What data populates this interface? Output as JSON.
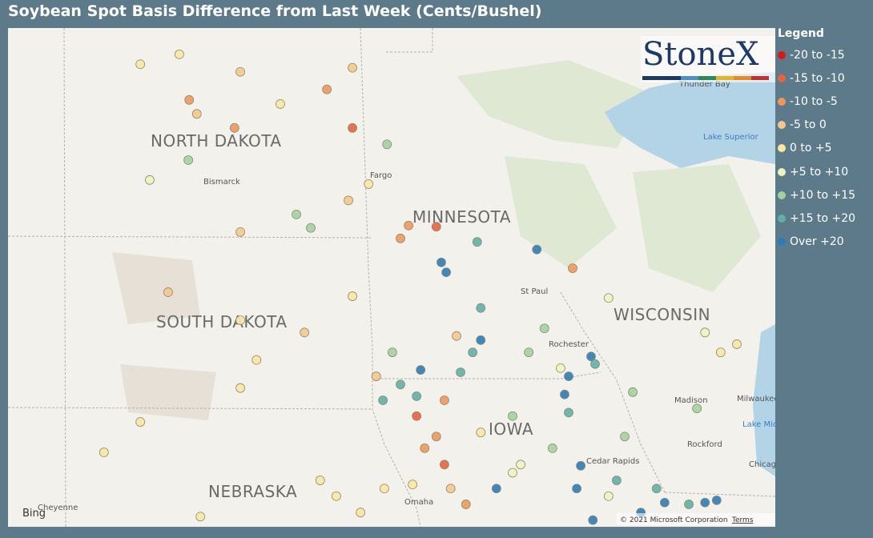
{
  "title": "Soybean Spot Basis Difference from Last Week (Cents/Bushel)",
  "logo": "StoneX",
  "legend": {
    "title": "Legend",
    "items": [
      {
        "label": "-20 to -15",
        "color": "#d7191c"
      },
      {
        "label": "-15 to -10",
        "color": "#e8643a"
      },
      {
        "label": "-10 to -5",
        "color": "#f0985a"
      },
      {
        "label": "-5 to 0",
        "color": "#f6c888"
      },
      {
        "label": "0 to +5",
        "color": "#fbe7a0"
      },
      {
        "label": "+5 to +10",
        "color": "#f1f3bd"
      },
      {
        "label": "+10 to +15",
        "color": "#a3d39c"
      },
      {
        "label": "+15 to +20",
        "color": "#5fb0a6"
      },
      {
        "label": "Over +20",
        "color": "#2c7bb6"
      }
    ]
  },
  "map_labels": {
    "states": [
      "NORTH DAKOTA",
      "SOUTH DAKOTA",
      "NEBRASKA",
      "MINNESOTA",
      "WISCONSIN",
      "IOWA"
    ],
    "cities": [
      "Bismarck",
      "Fargo",
      "St Paul",
      "Rochester",
      "Madison",
      "Milwaukee",
      "Cedar Rapids",
      "Omaha",
      "Rockford",
      "Chicago",
      "Thunder Bay",
      "Cheyenne"
    ],
    "lakes": [
      "Lake Superior",
      "Lake Michigan"
    ]
  },
  "attribution": {
    "bing": "Bing",
    "copyright": "© 2021 Microsoft Corporation",
    "terms": "Terms"
  },
  "points": [
    {
      "lon": -102.05,
      "lat": 48.88,
      "range": "0 to +5"
    },
    {
      "lon": -100.96,
      "lat": 48.27,
      "range": "-10 to -5"
    },
    {
      "lon": -100.79,
      "lat": 48.03,
      "range": "-5 to 0"
    },
    {
      "lon": -99.95,
      "lat": 47.79,
      "range": "-10 to -5"
    },
    {
      "lon": -101.18,
      "lat": 49.05,
      "range": "0 to +5"
    },
    {
      "lon": -99.82,
      "lat": 48.75,
      "range": "-5 to 0"
    },
    {
      "lon": -98.93,
      "lat": 48.2,
      "range": "0 to +5"
    },
    {
      "lon": -97.89,
      "lat": 48.45,
      "range": "-10 to -5"
    },
    {
      "lon": -97.32,
      "lat": 47.79,
      "range": "-15 to -10"
    },
    {
      "lon": -96.55,
      "lat": 47.51,
      "range": "+10 to +15"
    },
    {
      "lon": -97.32,
      "lat": 48.82,
      "range": "-5 to 0"
    },
    {
      "lon": -101.84,
      "lat": 46.9,
      "range": "+5 to +10"
    },
    {
      "lon": -100.98,
      "lat": 47.24,
      "range": "+10 to +15"
    },
    {
      "lon": -98.57,
      "lat": 46.31,
      "range": "+10 to +15"
    },
    {
      "lon": -98.25,
      "lat": 46.08,
      "range": "+10 to +15"
    },
    {
      "lon": -99.82,
      "lat": 46.01,
      "range": "-5 to 0"
    },
    {
      "lon": -97.41,
      "lat": 46.55,
      "range": "-5 to 0"
    },
    {
      "lon": -96.96,
      "lat": 46.83,
      "range": "0 to +5"
    },
    {
      "lon": -96.07,
      "lat": 46.12,
      "range": "-10 to -5"
    },
    {
      "lon": -96.25,
      "lat": 45.9,
      "range": "-10 to -5"
    },
    {
      "lon": -95.45,
      "lat": 46.1,
      "range": "-15 to -10"
    },
    {
      "lon": -94.54,
      "lat": 45.84,
      "range": "+15 to +20"
    },
    {
      "lon": -93.21,
      "lat": 45.71,
      "range": "Over +20"
    },
    {
      "lon": -95.34,
      "lat": 45.49,
      "range": "Over +20"
    },
    {
      "lon": -95.23,
      "lat": 45.32,
      "range": "Over +20"
    },
    {
      "lon": -92.41,
      "lat": 45.39,
      "range": "-10 to -5"
    },
    {
      "lon": -101.43,
      "lat": 44.98,
      "range": "-5 to 0"
    },
    {
      "lon": -99.82,
      "lat": 44.5,
      "range": "0 to +5"
    },
    {
      "lon": -98.39,
      "lat": 44.29,
      "range": "-5 to 0"
    },
    {
      "lon": -99.46,
      "lat": 43.82,
      "range": "0 to +5"
    },
    {
      "lon": -96.79,
      "lat": 43.54,
      "range": "-5 to 0"
    },
    {
      "lon": -96.25,
      "lat": 43.4,
      "range": "+15 to +20"
    },
    {
      "lon": -95.8,
      "lat": 43.65,
      "range": "Over +20"
    },
    {
      "lon": -96.64,
      "lat": 43.13,
      "range": "+15 to +20"
    },
    {
      "lon": -95.89,
      "lat": 43.2,
      "range": "+15 to +20"
    },
    {
      "lon": -94.46,
      "lat": 44.16,
      "range": "Over +20"
    },
    {
      "lon": -94.64,
      "lat": 43.95,
      "range": "+15 to +20"
    },
    {
      "lon": -94.91,
      "lat": 43.61,
      "range": "+15 to +20"
    },
    {
      "lon": -95.89,
      "lat": 42.86,
      "range": "-15 to -10"
    },
    {
      "lon": -95.71,
      "lat": 42.31,
      "range": "-10 to -5"
    },
    {
      "lon": -95.27,
      "lat": 42.03,
      "range": "-15 to -10"
    },
    {
      "lon": -94.79,
      "lat": 41.35,
      "range": "-10 to -5"
    },
    {
      "lon": -94.46,
      "lat": 42.58,
      "range": "0 to +5"
    },
    {
      "lon": -93.75,
      "lat": 42.86,
      "range": "+10 to +15"
    },
    {
      "lon": -93.57,
      "lat": 42.03,
      "range": "+5 to +10"
    },
    {
      "lon": -93.04,
      "lat": 44.36,
      "range": "+10 to +15"
    },
    {
      "lon": -93.39,
      "lat": 43.95,
      "range": "+10 to +15"
    },
    {
      "lon": -92.0,
      "lat": 43.88,
      "range": "Over +20"
    },
    {
      "lon": -91.91,
      "lat": 43.75,
      "range": "+15 to +20"
    },
    {
      "lon": -92.59,
      "lat": 43.23,
      "range": "Over +20"
    },
    {
      "lon": -92.5,
      "lat": 42.92,
      "range": "+15 to +20"
    },
    {
      "lon": -92.23,
      "lat": 42.01,
      "range": "Over +20"
    },
    {
      "lon": -92.32,
      "lat": 41.62,
      "range": "Over +20"
    },
    {
      "lon": -91.96,
      "lat": 41.08,
      "range": "Over +20"
    },
    {
      "lon": -91.43,
      "lat": 41.76,
      "range": "+15 to +20"
    },
    {
      "lon": -90.89,
      "lat": 41.21,
      "range": "Over +20"
    },
    {
      "lon": -90.36,
      "lat": 41.38,
      "range": "Over +20"
    },
    {
      "lon": -89.82,
      "lat": 41.35,
      "range": "+15 to +20"
    },
    {
      "lon": -89.46,
      "lat": 41.38,
      "range": "Over +20"
    },
    {
      "lon": -89.2,
      "lat": 41.42,
      "range": "Over +20"
    },
    {
      "lon": -91.07,
      "lat": 43.27,
      "range": "+10 to +15"
    },
    {
      "lon": -91.25,
      "lat": 42.51,
      "range": "+10 to +15"
    },
    {
      "lon": -89.64,
      "lat": 42.99,
      "range": "+10 to +15"
    },
    {
      "lon": -89.11,
      "lat": 43.95,
      "range": "0 to +5"
    },
    {
      "lon": -88.75,
      "lat": 44.09,
      "range": "0 to +5"
    },
    {
      "lon": -89.46,
      "lat": 44.29,
      "range": "+5 to +10"
    },
    {
      "lon": -91.61,
      "lat": 44.88,
      "range": "+5 to +10"
    },
    {
      "lon": -93.75,
      "lat": 41.89,
      "range": "+5 to +10"
    },
    {
      "lon": -94.11,
      "lat": 41.62,
      "range": "Over +20"
    },
    {
      "lon": -97.68,
      "lat": 41.49,
      "range": "0 to +5"
    },
    {
      "lon": -97.14,
      "lat": 41.21,
      "range": "0 to +5"
    },
    {
      "lon": -98.04,
      "lat": 41.76,
      "range": "0 to +5"
    },
    {
      "lon": -100.71,
      "lat": 41.14,
      "range": "0 to +5"
    },
    {
      "lon": -102.86,
      "lat": 42.24,
      "range": "0 to +5"
    },
    {
      "lon": -102.05,
      "lat": 42.76,
      "range": "0 to +5"
    },
    {
      "lon": -99.82,
      "lat": 43.34,
      "range": "0 to +5"
    },
    {
      "lon": -95.0,
      "lat": 44.23,
      "range": "-5 to 0"
    },
    {
      "lon": -97.32,
      "lat": 44.91,
      "range": "0 to +5"
    },
    {
      "lon": -94.46,
      "lat": 44.71,
      "range": "+15 to +20"
    },
    {
      "lon": -96.43,
      "lat": 43.95,
      "range": "+10 to +15"
    },
    {
      "lon": -95.13,
      "lat": 41.62,
      "range": "-5 to 0"
    },
    {
      "lon": -95.98,
      "lat": 41.69,
      "range": "0 to +5"
    },
    {
      "lon": -92.68,
      "lat": 43.68,
      "range": "+5 to +10"
    },
    {
      "lon": -92.86,
      "lat": 42.31,
      "range": "+10 to +15"
    },
    {
      "lon": -91.61,
      "lat": 41.49,
      "range": "+5 to +10"
    },
    {
      "lon": -95.27,
      "lat": 43.13,
      "range": "-10 to -5"
    },
    {
      "lon": -95.45,
      "lat": 42.51,
      "range": "-10 to -5"
    },
    {
      "lon": -96.61,
      "lat": 41.62,
      "range": "0 to +5"
    },
    {
      "lon": -92.5,
      "lat": 43.54,
      "range": "Over +20"
    },
    {
      "lon": -90.54,
      "lat": 41.62,
      "range": "+15 to +20"
    }
  ]
}
